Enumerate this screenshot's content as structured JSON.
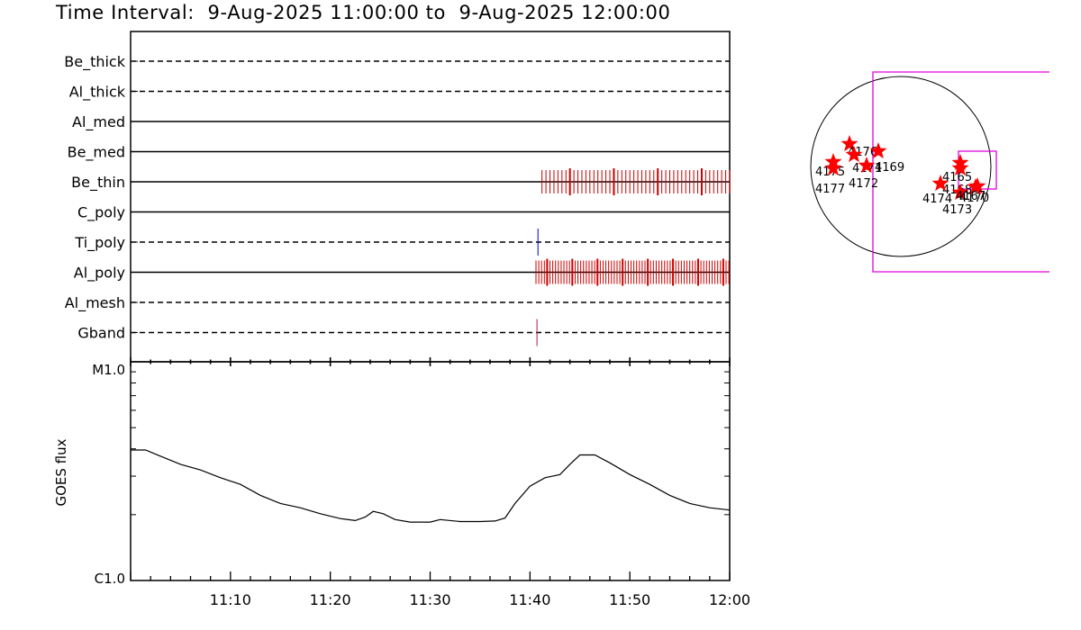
{
  "title": "Time Interval:  9-Aug-2025 11:00:00 to  9-Aug-2025 12:00:00",
  "colors": {
    "events": "#cc0000",
    "ti_poly_event": "#0000cc",
    "gband_event": "#aa2244",
    "fov": "#e000e0",
    "star": "#ff0000"
  },
  "chart_data": [
    {
      "type": "event-timeline",
      "x_range_minutes": [
        0,
        60
      ],
      "rows": [
        {
          "label": "Be_thick",
          "style": "dashed",
          "events": []
        },
        {
          "label": "Al_thick",
          "style": "dashed",
          "events": []
        },
        {
          "label": "Al_med",
          "style": "solid",
          "events": []
        },
        {
          "label": "Be_med",
          "style": "solid",
          "events": []
        },
        {
          "label": "Be_thin",
          "style": "solid",
          "event_span_minutes": [
            41.2,
            60
          ],
          "event_spacing_minutes": 0.4
        },
        {
          "label": "C_poly",
          "style": "solid",
          "events": []
        },
        {
          "label": "Ti_poly",
          "style": "dashed",
          "events": [
            40.8
          ]
        },
        {
          "label": "Al_poly",
          "style": "solid",
          "event_span_minutes": [
            40.6,
            60
          ],
          "event_spacing_minutes": 0.28
        },
        {
          "label": "Al_mesh",
          "style": "dashed",
          "events": []
        },
        {
          "label": "Gband",
          "style": "dashed",
          "events": [
            40.7
          ]
        }
      ]
    },
    {
      "type": "line",
      "ylabel": "GOES flux",
      "ytick_labels": [
        "M1.0",
        "C1.0"
      ],
      "y_scale": "log",
      "ylim": [
        1e-06,
        1e-05
      ],
      "xtick_labels": [
        "11:10",
        "11:20",
        "11:30",
        "11:40",
        "11:50",
        "12:00"
      ],
      "xlim_minutes": [
        0,
        60
      ],
      "x": [
        0,
        1.5,
        3,
        5,
        7,
        9,
        11,
        13,
        15,
        17,
        19,
        21,
        22.5,
        23.5,
        24.3,
        25.3,
        26.5,
        28,
        30,
        31,
        33,
        35,
        36.5,
        37.5,
        38.5,
        40,
        41.5,
        43,
        44,
        45,
        46.5,
        48,
        50,
        52,
        54,
        56,
        58,
        60
      ],
      "y": [
        3.95e-06,
        3.95e-06,
        3.7e-06,
        3.4e-06,
        3.2e-06,
        2.95e-06,
        2.75e-06,
        2.45e-06,
        2.25e-06,
        2.15e-06,
        2.02e-06,
        1.92e-06,
        1.88e-06,
        1.95e-06,
        2.07e-06,
        2.02e-06,
        1.9e-06,
        1.85e-06,
        1.85e-06,
        1.9e-06,
        1.86e-06,
        1.86e-06,
        1.87e-06,
        1.93e-06,
        2.25e-06,
        2.7e-06,
        2.95e-06,
        3.05e-06,
        3.4e-06,
        3.75e-06,
        3.75e-06,
        3.45e-06,
        3.05e-06,
        2.75e-06,
        2.45e-06,
        2.25e-06,
        2.15e-06,
        2.1e-06
      ]
    },
    {
      "type": "scatter",
      "description": "solar disk with active regions",
      "points": [
        {
          "label": "4175",
          "x": -0.75,
          "y": 0.05
        },
        {
          "label": "4177",
          "x": -0.75,
          "y": -0.02
        },
        {
          "label": "4176",
          "x": -0.57,
          "y": 0.25
        },
        {
          "label": "4171",
          "x": -0.52,
          "y": 0.13
        },
        {
          "label": "4172",
          "x": -0.38,
          "y": 0.01
        },
        {
          "label": "4169",
          "x": -0.25,
          "y": 0.17
        },
        {
          "label": "4165",
          "x": 0.66,
          "y": 0.04
        },
        {
          "label": "4168",
          "x": 0.66,
          "y": -0.02
        },
        {
          "label": "4174",
          "x": 0.44,
          "y": -0.19
        },
        {
          "label": "4173",
          "x": 0.66,
          "y": -0.29
        },
        {
          "label": "4170",
          "x": 0.85,
          "y": -0.22
        },
        {
          "label": "4167",
          "x": 0.83,
          "y": -0.23
        }
      ]
    }
  ]
}
